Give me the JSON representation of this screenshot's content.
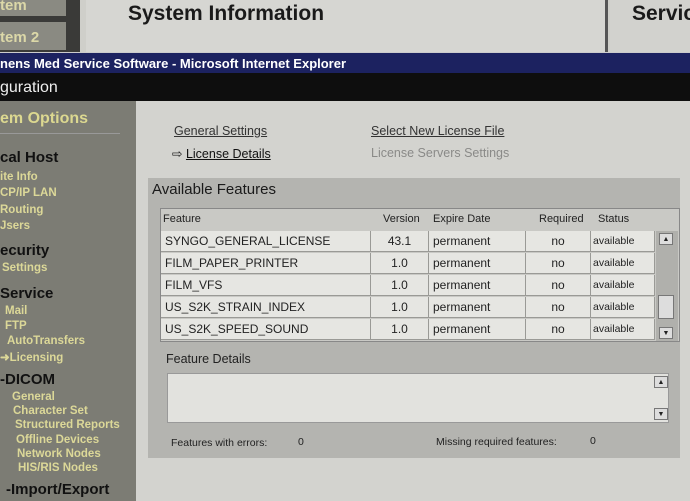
{
  "top_tabs": {
    "item1": "tem",
    "item2": "tem 2",
    "center_title": "System Information",
    "right_title": "Servic"
  },
  "window_title": "nens Med Service Software - Microsoft Internet Explorer",
  "app_bar": "guration",
  "sidebar": {
    "title": "em Options",
    "groups": [
      {
        "label": "cal Host",
        "items": [
          "ite Info",
          "CP/IP LAN",
          "Routing",
          "Jsers"
        ]
      },
      {
        "label": "ecurity",
        "items": [
          "Settings"
        ]
      },
      {
        "label": "Service",
        "items": [
          "Mail",
          "FTP",
          "AutoTransfers",
          "Licensing"
        ]
      },
      {
        "label": "DICOM",
        "items": [
          "General",
          "Character Set",
          "Structured Reports",
          "Offline Devices",
          "Network Nodes",
          "HIS/RIS Nodes"
        ]
      },
      {
        "label": "Import/Export",
        "items": []
      }
    ],
    "selected": "Licensing"
  },
  "links": {
    "general_settings": "General Settings",
    "license_details": "License Details",
    "select_new_license": "Select New License File",
    "license_servers": "License Servers Settings"
  },
  "features": {
    "title": "Available Features",
    "columns": [
      "Feature",
      "Version",
      "Expire Date",
      "Required",
      "Status"
    ],
    "rows": [
      [
        "SYNGO_GENERAL_LICENSE",
        "43.1",
        "permanent",
        "no",
        "available"
      ],
      [
        "FILM_PAPER_PRINTER",
        "1.0",
        "permanent",
        "no",
        "available"
      ],
      [
        "FILM_VFS",
        "1.0",
        "permanent",
        "no",
        "available"
      ],
      [
        "US_S2K_STRAIN_INDEX",
        "1.0",
        "permanent",
        "no",
        "available"
      ],
      [
        "US_S2K_SPEED_SOUND",
        "1.0",
        "permanent",
        "no",
        "available"
      ]
    ]
  },
  "feature_details": {
    "title": "Feature Details",
    "value": ""
  },
  "summary": {
    "errors_label": "Features with errors:",
    "errors_value": "0",
    "missing_label": "Missing required features:",
    "missing_value": "0"
  }
}
